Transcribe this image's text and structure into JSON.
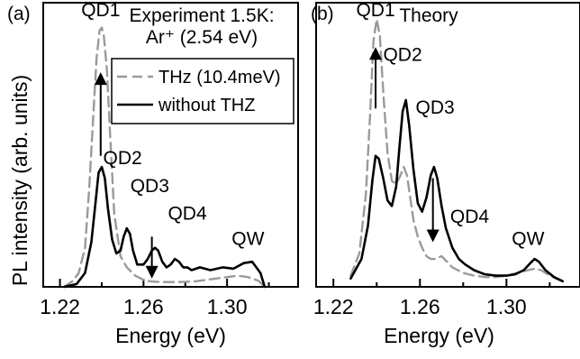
{
  "figure": {
    "ylabel": "PL intensity (arb. units)"
  },
  "chart_data": [
    {
      "type": "line",
      "panel_label": "(a)",
      "title_lines": [
        "Experiment 1.5K:",
        "Ar⁺ (2.54 eV)"
      ],
      "xlabel": "Energy (eV)",
      "xlim": [
        1.212,
        1.334
      ],
      "ylim": [
        0,
        1.0
      ],
      "xticks": [
        1.22,
        1.26,
        1.3
      ],
      "xtick_labels": [
        "1.22",
        "1.26",
        "1.30"
      ],
      "legend_placement": "top-right",
      "series": [
        {
          "name": "THz (10.4meV)",
          "color": "#9a9a9a",
          "dash": "dashed",
          "x": [
            1.222,
            1.226,
            1.229,
            1.232,
            1.234,
            1.236,
            1.2375,
            1.239,
            1.24,
            1.241,
            1.2425,
            1.244,
            1.246,
            1.249,
            1.252,
            1.256,
            1.26,
            1.263,
            1.266,
            1.27,
            1.275,
            1.28,
            1.285,
            1.29,
            1.295,
            1.3,
            1.305,
            1.31,
            1.315,
            1.318
          ],
          "y": [
            0.0,
            0.02,
            0.05,
            0.14,
            0.35,
            0.62,
            0.82,
            0.92,
            0.93,
            0.9,
            0.78,
            0.55,
            0.26,
            0.11,
            0.07,
            0.04,
            0.025,
            0.02,
            0.018,
            0.017,
            0.017,
            0.018,
            0.02,
            0.025,
            0.03,
            0.035,
            0.04,
            0.035,
            0.022,
            0.0
          ]
        },
        {
          "name": "without THZ",
          "color": "#000000",
          "dash": "solid",
          "x": [
            1.222,
            1.228,
            1.232,
            1.235,
            1.237,
            1.2385,
            1.24,
            1.2415,
            1.243,
            1.245,
            1.247,
            1.249,
            1.2505,
            1.252,
            1.2535,
            1.255,
            1.257,
            1.26,
            1.262,
            1.264,
            1.2655,
            1.267,
            1.269,
            1.271,
            1.273,
            1.275,
            1.277,
            1.279,
            1.281,
            1.283,
            1.287,
            1.292,
            1.298,
            1.303,
            1.308,
            1.312,
            1.316,
            1.318
          ],
          "y": [
            0.0,
            0.01,
            0.05,
            0.16,
            0.3,
            0.41,
            0.43,
            0.39,
            0.28,
            0.17,
            0.12,
            0.13,
            0.18,
            0.21,
            0.19,
            0.13,
            0.08,
            0.08,
            0.1,
            0.13,
            0.14,
            0.13,
            0.09,
            0.07,
            0.08,
            0.1,
            0.09,
            0.07,
            0.07,
            0.06,
            0.07,
            0.06,
            0.07,
            0.065,
            0.085,
            0.09,
            0.05,
            0.0
          ]
        }
      ],
      "annotations": [
        {
          "text": "QD1",
          "x": 1.2395,
          "y": 0.99
        },
        {
          "text": "QD2",
          "x": 1.25,
          "y": 0.46
        },
        {
          "text": "QD3",
          "x": 1.263,
          "y": 0.36
        },
        {
          "text": "QD4",
          "x": 1.281,
          "y": 0.26
        },
        {
          "text": "QW",
          "x": 1.31,
          "y": 0.17
        }
      ],
      "arrows": [
        {
          "x": 1.2395,
          "from": 0.47,
          "to": 0.77
        },
        {
          "x": 1.264,
          "from": 0.18,
          "to": 0.03
        }
      ]
    },
    {
      "type": "line",
      "panel_label": "(b)",
      "title_lines": [
        "Theory"
      ],
      "xlabel": "Energy (eV)",
      "xlim": [
        1.212,
        1.334
      ],
      "ylim": [
        0,
        1.0
      ],
      "xticks": [
        1.22,
        1.26,
        1.3
      ],
      "xtick_labels": [
        "1.22",
        "1.26",
        "1.30"
      ],
      "series": [
        {
          "name": "THz (10.4meV)",
          "color": "#9a9a9a",
          "dash": "dashed",
          "x": [
            1.228,
            1.232,
            1.235,
            1.237,
            1.2385,
            1.24,
            1.2415,
            1.243,
            1.245,
            1.247,
            1.249,
            1.251,
            1.2525,
            1.254,
            1.2555,
            1.257,
            1.259,
            1.261,
            1.263,
            1.265,
            1.267,
            1.27,
            1.275,
            1.28,
            1.285,
            1.29,
            1.295,
            1.3,
            1.305,
            1.31,
            1.313,
            1.316,
            1.32,
            1.326
          ],
          "y": [
            0.04,
            0.12,
            0.33,
            0.62,
            0.88,
            0.96,
            0.9,
            0.7,
            0.48,
            0.38,
            0.37,
            0.4,
            0.43,
            0.4,
            0.32,
            0.24,
            0.18,
            0.14,
            0.11,
            0.1,
            0.1,
            0.11,
            0.07,
            0.05,
            0.04,
            0.035,
            0.035,
            0.04,
            0.05,
            0.06,
            0.065,
            0.06,
            0.04,
            0.02
          ]
        },
        {
          "name": "without THZ",
          "color": "#000000",
          "dash": "solid",
          "x": [
            1.228,
            1.233,
            1.236,
            1.238,
            1.2395,
            1.241,
            1.243,
            1.245,
            1.247,
            1.249,
            1.2505,
            1.252,
            1.2535,
            1.255,
            1.257,
            1.259,
            1.261,
            1.263,
            1.265,
            1.2665,
            1.268,
            1.27,
            1.272,
            1.275,
            1.278,
            1.281,
            1.285,
            1.29,
            1.295,
            1.3,
            1.304,
            1.308,
            1.311,
            1.313,
            1.315,
            1.318,
            1.322,
            1.326
          ],
          "y": [
            0.03,
            0.1,
            0.22,
            0.38,
            0.47,
            0.46,
            0.39,
            0.31,
            0.29,
            0.36,
            0.5,
            0.63,
            0.67,
            0.58,
            0.42,
            0.3,
            0.27,
            0.32,
            0.4,
            0.43,
            0.39,
            0.29,
            0.21,
            0.14,
            0.1,
            0.08,
            0.06,
            0.045,
            0.04,
            0.04,
            0.045,
            0.06,
            0.085,
            0.1,
            0.09,
            0.06,
            0.035,
            0.02
          ]
        }
      ],
      "annotations": [
        {
          "text": "QD1",
          "x": 1.2395,
          "y": 0.99
        },
        {
          "text": "QD2",
          "x": 1.252,
          "y": 0.83
        },
        {
          "text": "QD3",
          "x": 1.267,
          "y": 0.64
        },
        {
          "text": "QD4",
          "x": 1.283,
          "y": 0.25
        },
        {
          "text": "QW",
          "x": 1.31,
          "y": 0.17
        }
      ],
      "arrows": [
        {
          "x": 1.2395,
          "from": 0.64,
          "to": 0.86
        },
        {
          "x": 1.266,
          "from": 0.39,
          "to": 0.16
        }
      ]
    }
  ]
}
